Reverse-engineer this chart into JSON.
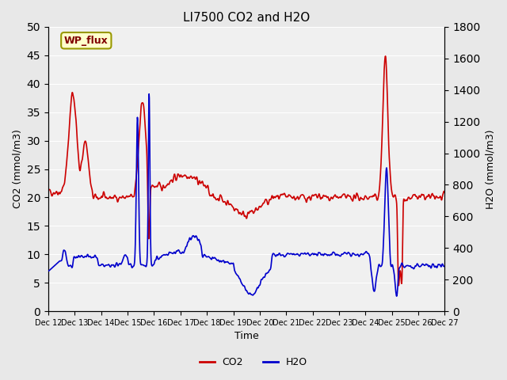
{
  "title": "LI7500 CO2 and H2O",
  "xlabel": "Time",
  "ylabel_left": "CO2 (mmol/m3)",
  "ylabel_right": "H2O (mmol/m3)",
  "annotation": "WP_flux",
  "xlim": [
    0,
    16
  ],
  "ylim_left": [
    0,
    50
  ],
  "ylim_right": [
    0,
    1800
  ],
  "yticks_left": [
    0,
    5,
    10,
    15,
    20,
    25,
    30,
    35,
    40,
    45,
    50
  ],
  "yticks_right": [
    0,
    200,
    400,
    600,
    800,
    1000,
    1200,
    1400,
    1600,
    1800
  ],
  "xtick_labels": [
    "Dec 12",
    "Dec 13",
    "Dec 14",
    "Dec 15",
    "Dec 16",
    "Dec 17",
    "Dec 18",
    "Dec 19",
    "Dec 20",
    "Dec 21",
    "Dec 22",
    "Dec 23",
    "Dec 24",
    "Dec 25",
    "Dec 26",
    "Dec 27"
  ],
  "co2_color": "#cc0000",
  "h2o_color": "#0000cc",
  "background_color": "#e8e8e8",
  "plot_bg_color": "#f0f0f0",
  "legend_co2": "CO2",
  "legend_h2o": "H2O",
  "linewidth": 1.2
}
